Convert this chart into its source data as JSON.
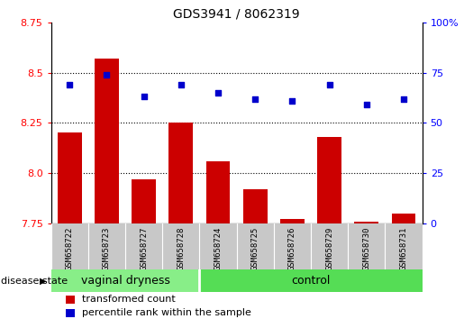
{
  "title": "GDS3941 / 8062319",
  "samples": [
    "GSM658722",
    "GSM658723",
    "GSM658727",
    "GSM658728",
    "GSM658724",
    "GSM658725",
    "GSM658726",
    "GSM658729",
    "GSM658730",
    "GSM658731"
  ],
  "bar_values": [
    8.2,
    8.57,
    7.97,
    8.25,
    8.06,
    7.92,
    7.77,
    8.18,
    7.76,
    7.8
  ],
  "dot_values": [
    69,
    74,
    63,
    69,
    65,
    62,
    61,
    69,
    59,
    62
  ],
  "bar_color": "#cc0000",
  "dot_color": "#0000cc",
  "ylim_left": [
    7.75,
    8.75
  ],
  "ylim_right": [
    0,
    100
  ],
  "yticks_left": [
    7.75,
    8.0,
    8.25,
    8.5,
    8.75
  ],
  "yticks_right": [
    0,
    25,
    50,
    75,
    100
  ],
  "grid_values": [
    8.0,
    8.25,
    8.5
  ],
  "label_transformed": "transformed count",
  "label_percentile": "percentile rank within the sample",
  "disease_state_label": "disease state",
  "group_split": 4,
  "bar_width": 0.65,
  "group1_label": "vaginal dryness",
  "group2_label": "control",
  "group_color1": "#88ee88",
  "group_color2": "#55dd55",
  "label_band_color": "#c8c8c8"
}
